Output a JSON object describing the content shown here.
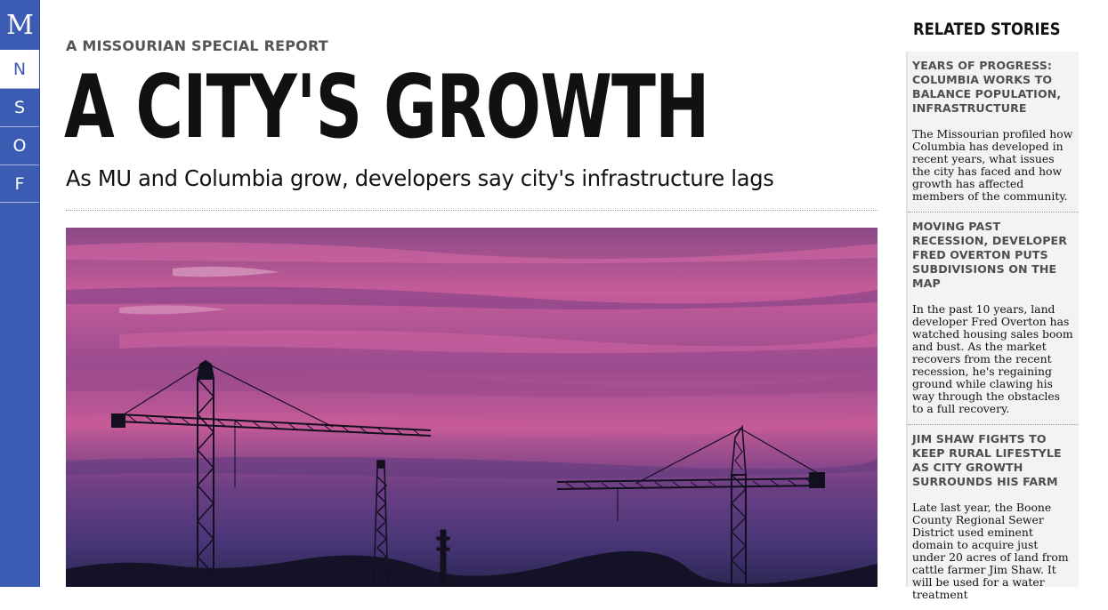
{
  "nav": {
    "logo": "M",
    "items": [
      {
        "label": "N"
      },
      {
        "label": "S"
      },
      {
        "label": "O"
      },
      {
        "label": "F"
      }
    ]
  },
  "header": {
    "kicker": "A MISSOURIAN SPECIAL REPORT",
    "title": "A CITY'S GROWTH",
    "subtitle": "As MU and Columbia grow, developers say city's infrastructure lags"
  },
  "sidebar": {
    "title": "RELATED STORIES",
    "stories": [
      {
        "title": "YEARS OF PROGRESS: COLUMBIA WORKS TO BALANCE POPULATION, INFRASTRUCTURE",
        "text": "The Missourian profiled how Columbia has developed in recent years, what issues the city has faced and how growth has affected members of the community."
      },
      {
        "title": "MOVING PAST RECESSION, DEVELOPER FRED OVERTON PUTS SUBDIVISIONS ON THE MAP",
        "text": "In the past 10 years, land developer Fred Overton has watched housing sales boom and bust. As the market recovers from the recent recession, he's regaining ground while clawing his way through the obstacles to a full recovery."
      },
      {
        "title": "JIM SHAW FIGHTS TO KEEP RURAL LIFESTYLE AS CITY GROWTH SURROUNDS HIS FARM",
        "text": "Late last year, the Boone County Regional Sewer District used eminent domain to acquire just under 20 acres of land from cattle farmer Jim Shaw. It will be used for a water treatment"
      }
    ]
  },
  "colors": {
    "nav_blue": "#3c5bb2",
    "sky_magenta": "#c85a9b",
    "sky_purple": "#3f3573"
  }
}
